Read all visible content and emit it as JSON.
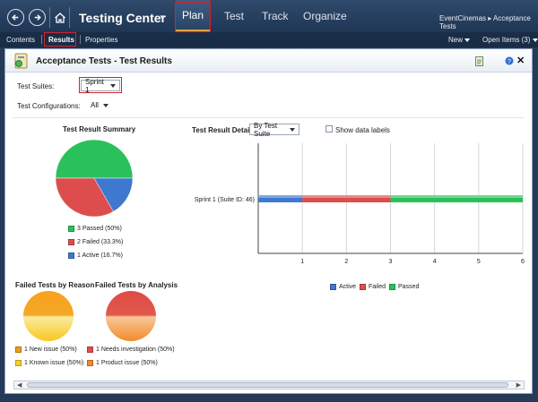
{
  "app": {
    "name": "Testing Center",
    "nav": [
      "Plan",
      "Test",
      "Track",
      "Organize"
    ],
    "breadcrumb": "EventCinemas ▸ Acceptance Tests"
  },
  "subbar": {
    "contents": "Contents",
    "results": "Results",
    "properties": "Properties",
    "new": "New",
    "open_items": "Open Items (3)"
  },
  "panel": {
    "title": "Acceptance Tests - Test Results",
    "test_suites_label": "Test Suites:",
    "test_suites_value": "Sprint 1",
    "test_configs_label": "Test Configurations:",
    "test_configs_value": "All"
  },
  "summary": {
    "title": "Test Result Summary",
    "legend": [
      "3 Passed (50%)",
      "2 Failed (33.3%)",
      "1 Active (16.7%)"
    ]
  },
  "details": {
    "title": "Test Result Details",
    "group_by": "By Test Suite",
    "show_labels": "Show data labels",
    "legend": [
      "Active",
      "Failed",
      "Passed"
    ]
  },
  "reason": {
    "title": "Failed Tests by Reason",
    "legend": [
      "1 New issue (50%)",
      "1 Known issue (50%)"
    ]
  },
  "analysis": {
    "title": "Failed Tests by Analysis",
    "legend": [
      "1 Needs investigation (50%)",
      "1 Product issue (50%)"
    ]
  },
  "colors": {
    "passed": "#2bc15a",
    "failed": "#de4d4d",
    "active": "#3e78d0",
    "orange": "#f29a1f",
    "yellow": "#f6cf2a",
    "accent": "#e8a03a"
  },
  "chart_data": [
    {
      "type": "pie",
      "title": "Test Result Summary",
      "labels": [
        "Passed",
        "Failed",
        "Active"
      ],
      "values": [
        3,
        2,
        1
      ]
    },
    {
      "type": "bar",
      "orientation": "horizontal",
      "stacked": true,
      "title": "Test Result Details",
      "categories": [
        "Sprint 1 (Suite ID: 46)"
      ],
      "series": [
        {
          "name": "Active",
          "values": [
            1
          ]
        },
        {
          "name": "Failed",
          "values": [
            2
          ]
        },
        {
          "name": "Passed",
          "values": [
            3
          ]
        }
      ],
      "xlim": [
        0,
        6
      ],
      "xticks": [
        "1",
        "2",
        "3",
        "4",
        "5",
        "6"
      ],
      "grid": true,
      "legend": "bottom"
    },
    {
      "type": "pie",
      "title": "Failed Tests by Reason",
      "labels": [
        "New issue",
        "Known issue"
      ],
      "values": [
        1,
        1
      ]
    },
    {
      "type": "pie",
      "title": "Failed Tests by Analysis",
      "labels": [
        "Needs investigation",
        "Product issue"
      ],
      "values": [
        1,
        1
      ]
    }
  ]
}
